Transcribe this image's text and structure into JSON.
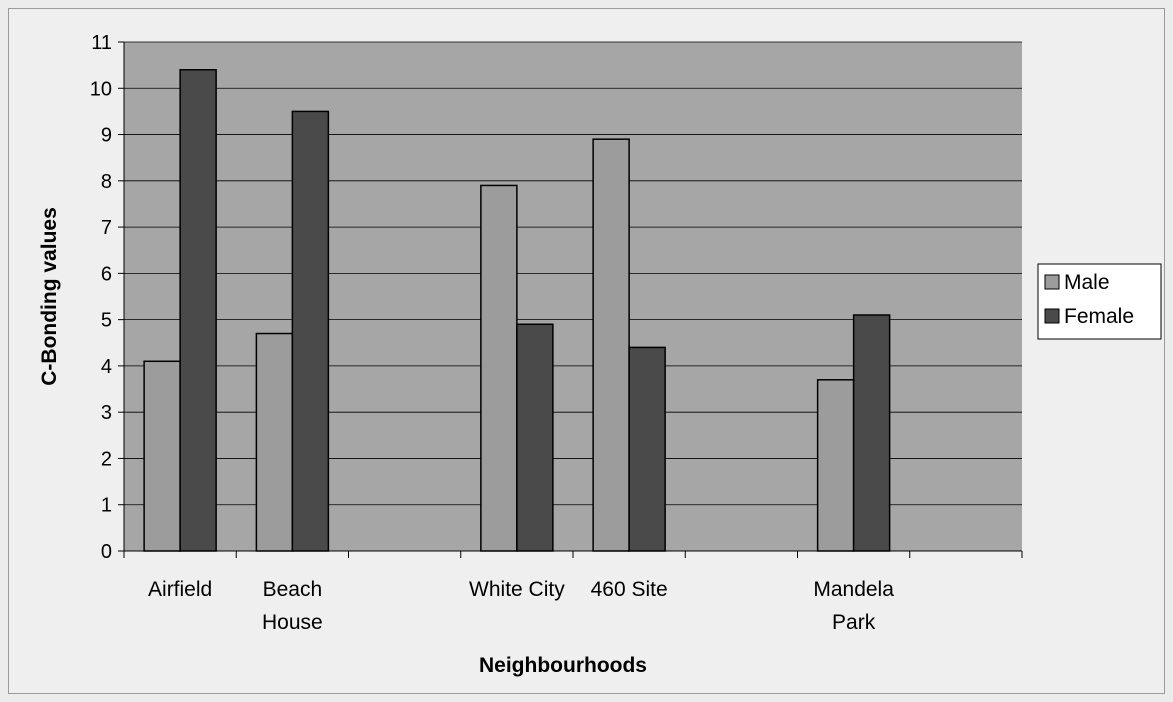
{
  "chart_data": {
    "type": "bar",
    "xlabel": "Neighbourhoods",
    "ylabel": "C-Bonding values",
    "ylim": [
      0,
      11
    ],
    "yticks": [
      "0",
      "1",
      "2",
      "3",
      "4",
      "5",
      "6",
      "7",
      "8",
      "9",
      "10",
      "11"
    ],
    "grid": true,
    "legend_position": "right",
    "slots": 8,
    "categories": [
      {
        "lines": [
          "Airfield"
        ],
        "slot": 0
      },
      {
        "lines": [
          "Beach",
          "House"
        ],
        "slot": 1
      },
      {
        "lines": [
          "White City"
        ],
        "slot": 3
      },
      {
        "lines": [
          "460 Site"
        ],
        "slot": 4
      },
      {
        "lines": [
          "Mandela",
          "Park"
        ],
        "slot": 6
      }
    ],
    "series": [
      {
        "name": "Male",
        "color": "#9c9c9c",
        "values": [
          4.1,
          4.7,
          7.9,
          8.9,
          3.7
        ]
      },
      {
        "name": "Female",
        "color": "#4a4a4a",
        "values": [
          10.4,
          9.5,
          4.9,
          4.4,
          5.1
        ]
      }
    ],
    "plot_background": "#a6a6a6"
  }
}
